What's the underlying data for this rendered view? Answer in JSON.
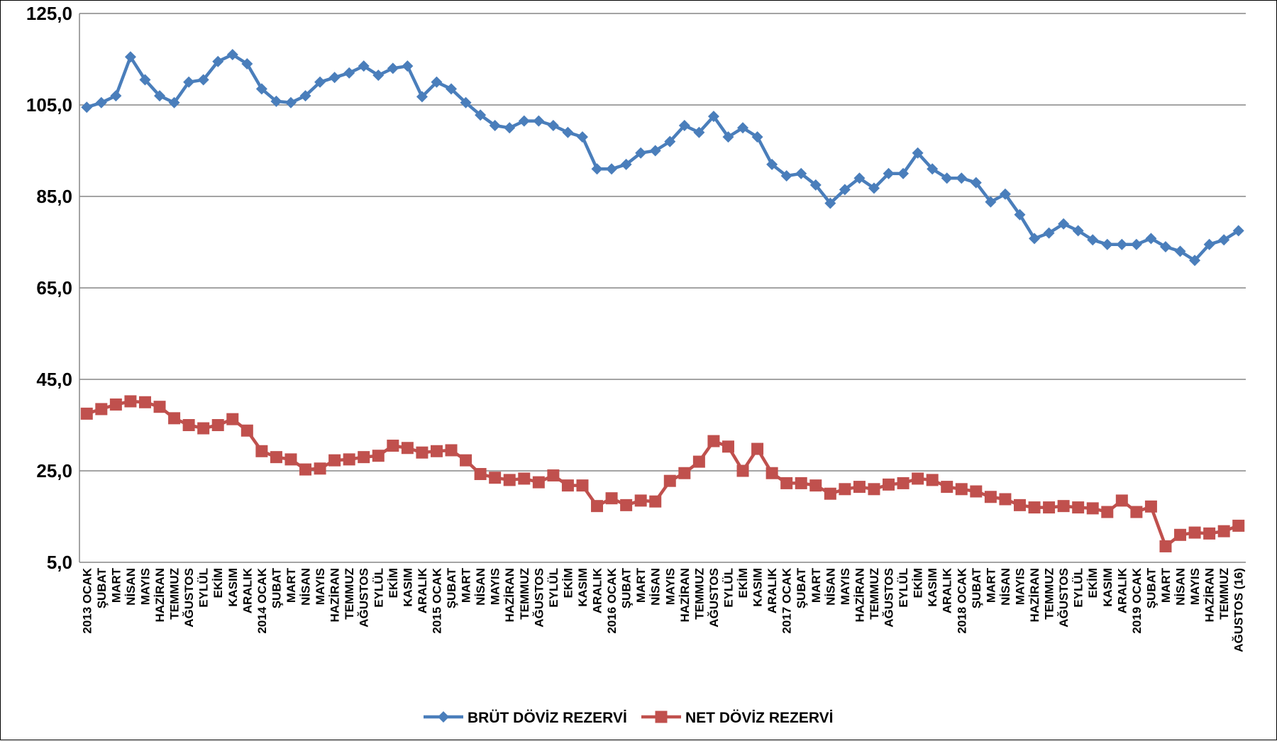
{
  "chart_data": {
    "type": "line",
    "title": "",
    "xlabel": "",
    "ylabel": "",
    "ylim": [
      5,
      125
    ],
    "yticks": [
      5,
      25,
      45,
      65,
      85,
      105,
      125
    ],
    "ytick_labels": [
      "5,0",
      "25,0",
      "45,0",
      "65,0",
      "85,0",
      "105,0",
      "125,0"
    ],
    "grid": "horizontal",
    "legend_position": "bottom-center",
    "categories": [
      "2013 OCAK",
      "ŞUBAT",
      "MART",
      "NİSAN",
      "MAYIS",
      "HAZİRAN",
      "TEMMUZ",
      "AĞUSTOS",
      "EYLÜL",
      "EKİM",
      "KASIM",
      "ARALIK",
      "2014 OCAK",
      "ŞUBAT",
      "MART",
      "NİSAN",
      "MAYIS",
      "HAZİRAN",
      "TEMMUZ",
      "AĞUSTOS",
      "EYLÜL",
      "EKİM",
      "KASIM",
      "ARALIK",
      "2015 OCAK",
      "ŞUBAT",
      "MART",
      "NİSAN",
      "MAYIS",
      "HAZİRAN",
      "TEMMUZ",
      "AĞUSTOS",
      "EYLÜL",
      "EKİM",
      "KASIM",
      "ARALIK",
      "2016 OCAK",
      "ŞUBAT",
      "MART",
      "NİSAN",
      "MAYIS",
      "HAZİRAN",
      "TEMMUZ",
      "AĞUSTOS",
      "EYLÜL",
      "EKİM",
      "KASIM",
      "ARALIK",
      "2017 OCAK",
      "ŞUBAT",
      "MART",
      "NİSAN",
      "MAYIS",
      "HAZİRAN",
      "TEMMUZ",
      "AĞUSTOS",
      "EYLÜL",
      "EKİM",
      "KASIM",
      "ARALIK",
      "2018 OCAK",
      "ŞUBAT",
      "MART",
      "NİSAN",
      "MAYIS",
      "HAZİRAN",
      "TEMMUZ",
      "AĞUSTOS",
      "EYLÜL",
      "EKİM",
      "KASIM",
      "ARALIK",
      "2019 OCAK",
      "ŞUBAT",
      "MART",
      "NİSAN",
      "MAYIS",
      "HAZİRAN",
      "TEMMUZ",
      "AĞUSTOS (16)"
    ],
    "series": [
      {
        "name": "BRÜT DÖVİZ REZERVİ",
        "color": "#4a7ebb",
        "marker": "diamond",
        "values": [
          104.5,
          105.5,
          107.0,
          115.5,
          110.5,
          107.0,
          105.5,
          110.0,
          110.5,
          114.5,
          116.0,
          114.0,
          108.5,
          105.8,
          105.5,
          107.0,
          110.0,
          111.0,
          112.0,
          113.5,
          111.5,
          113.0,
          113.5,
          106.8,
          110.0,
          108.5,
          105.5,
          102.8,
          100.5,
          100.0,
          101.5,
          101.5,
          100.5,
          99.0,
          98.0,
          91.0,
          91.0,
          92.0,
          94.5,
          95.0,
          97.0,
          100.5,
          99.0,
          102.5,
          98.0,
          100.0,
          98.0,
          92.0,
          89.5,
          90.0,
          87.5,
          83.5,
          86.5,
          89.0,
          86.8,
          90.0,
          90.0,
          94.5,
          91.0,
          89.0,
          89.0,
          88.0,
          83.8,
          85.5,
          81.0,
          75.8,
          77.0,
          79.0,
          77.5,
          75.5,
          74.5,
          74.5,
          74.5,
          75.8,
          74.0,
          73.0,
          71.0,
          74.5,
          75.5,
          77.5
        ]
      },
      {
        "name": "NET DÖVİZ REZERVİ",
        "color": "#c0504d",
        "marker": "square",
        "values": [
          37.5,
          38.5,
          39.5,
          40.2,
          40.0,
          39.0,
          36.5,
          35.0,
          34.3,
          35.0,
          36.3,
          33.8,
          29.3,
          28.0,
          27.5,
          25.3,
          25.5,
          27.3,
          27.5,
          28.0,
          28.3,
          30.5,
          30.0,
          29.0,
          29.3,
          29.5,
          27.3,
          24.3,
          23.5,
          23.0,
          23.3,
          22.5,
          24.0,
          21.8,
          21.8,
          17.3,
          19.0,
          17.5,
          18.5,
          18.3,
          22.8,
          24.5,
          27.0,
          31.5,
          30.3,
          25.0,
          29.8,
          24.5,
          22.3,
          22.3,
          21.8,
          20.0,
          21.0,
          21.5,
          21.0,
          22.0,
          22.3,
          23.3,
          23.0,
          21.5,
          21.0,
          20.5,
          19.3,
          18.8,
          17.5,
          17.0,
          17.0,
          17.3,
          17.0,
          16.8,
          16.0,
          18.5,
          16.0,
          17.2,
          8.5,
          11.0,
          11.5,
          11.3,
          11.8,
          13.0
        ]
      }
    ]
  }
}
